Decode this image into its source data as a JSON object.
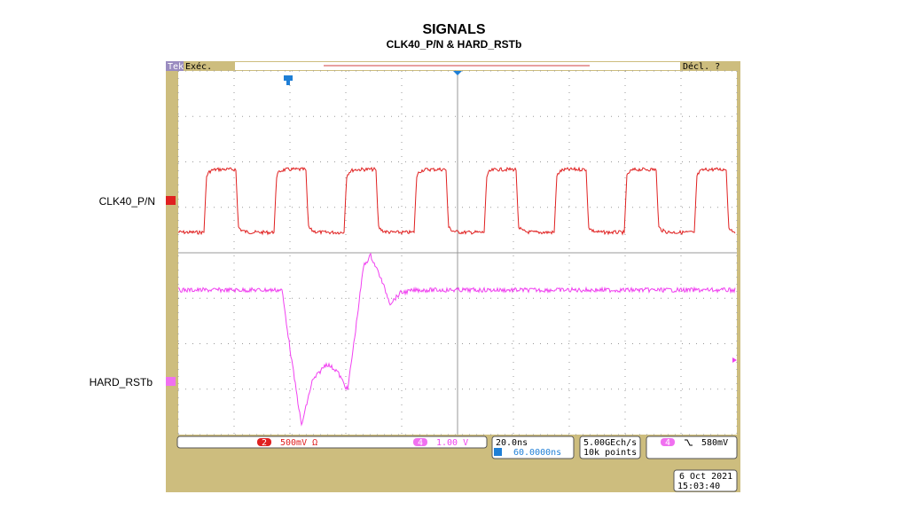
{
  "header": {
    "title": "SIGNALS",
    "subtitle": "CLK40_P/N & HARD_RSTb"
  },
  "scope": {
    "brand": "Tek",
    "mode": "Exéc.",
    "trigger_status": "Décl. ?",
    "channels": [
      {
        "number": "2",
        "scale": "500mV Ω",
        "label": "CLK40_P/N"
      },
      {
        "number": "4",
        "scale": "1.00 V",
        "label": "HARD_RSTb"
      }
    ],
    "timebase": "20.0ns",
    "delay": "60.0000ns",
    "sample_rate": "5.00GEch/s",
    "record_length": "10k points",
    "trigger_source": "4",
    "trigger_level": "580mV",
    "date": "6 Oct  2021",
    "time": "15:03:40"
  }
}
